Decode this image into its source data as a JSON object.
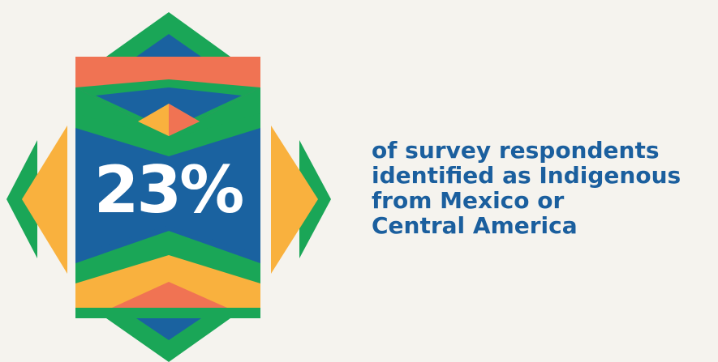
{
  "statistic": {
    "value": "23%",
    "caption_lines": [
      "of survey respondents",
      "identified as Indigenous",
      "from Mexico or",
      "Central America"
    ]
  },
  "colors": {
    "background": "#f5f3ee",
    "blue": "#1a62a0",
    "green": "#1aa657",
    "orange": "#f07353",
    "yellow": "#f9b13e",
    "caption_text": "#1b5f9e",
    "value_text": "#ffffff"
  }
}
